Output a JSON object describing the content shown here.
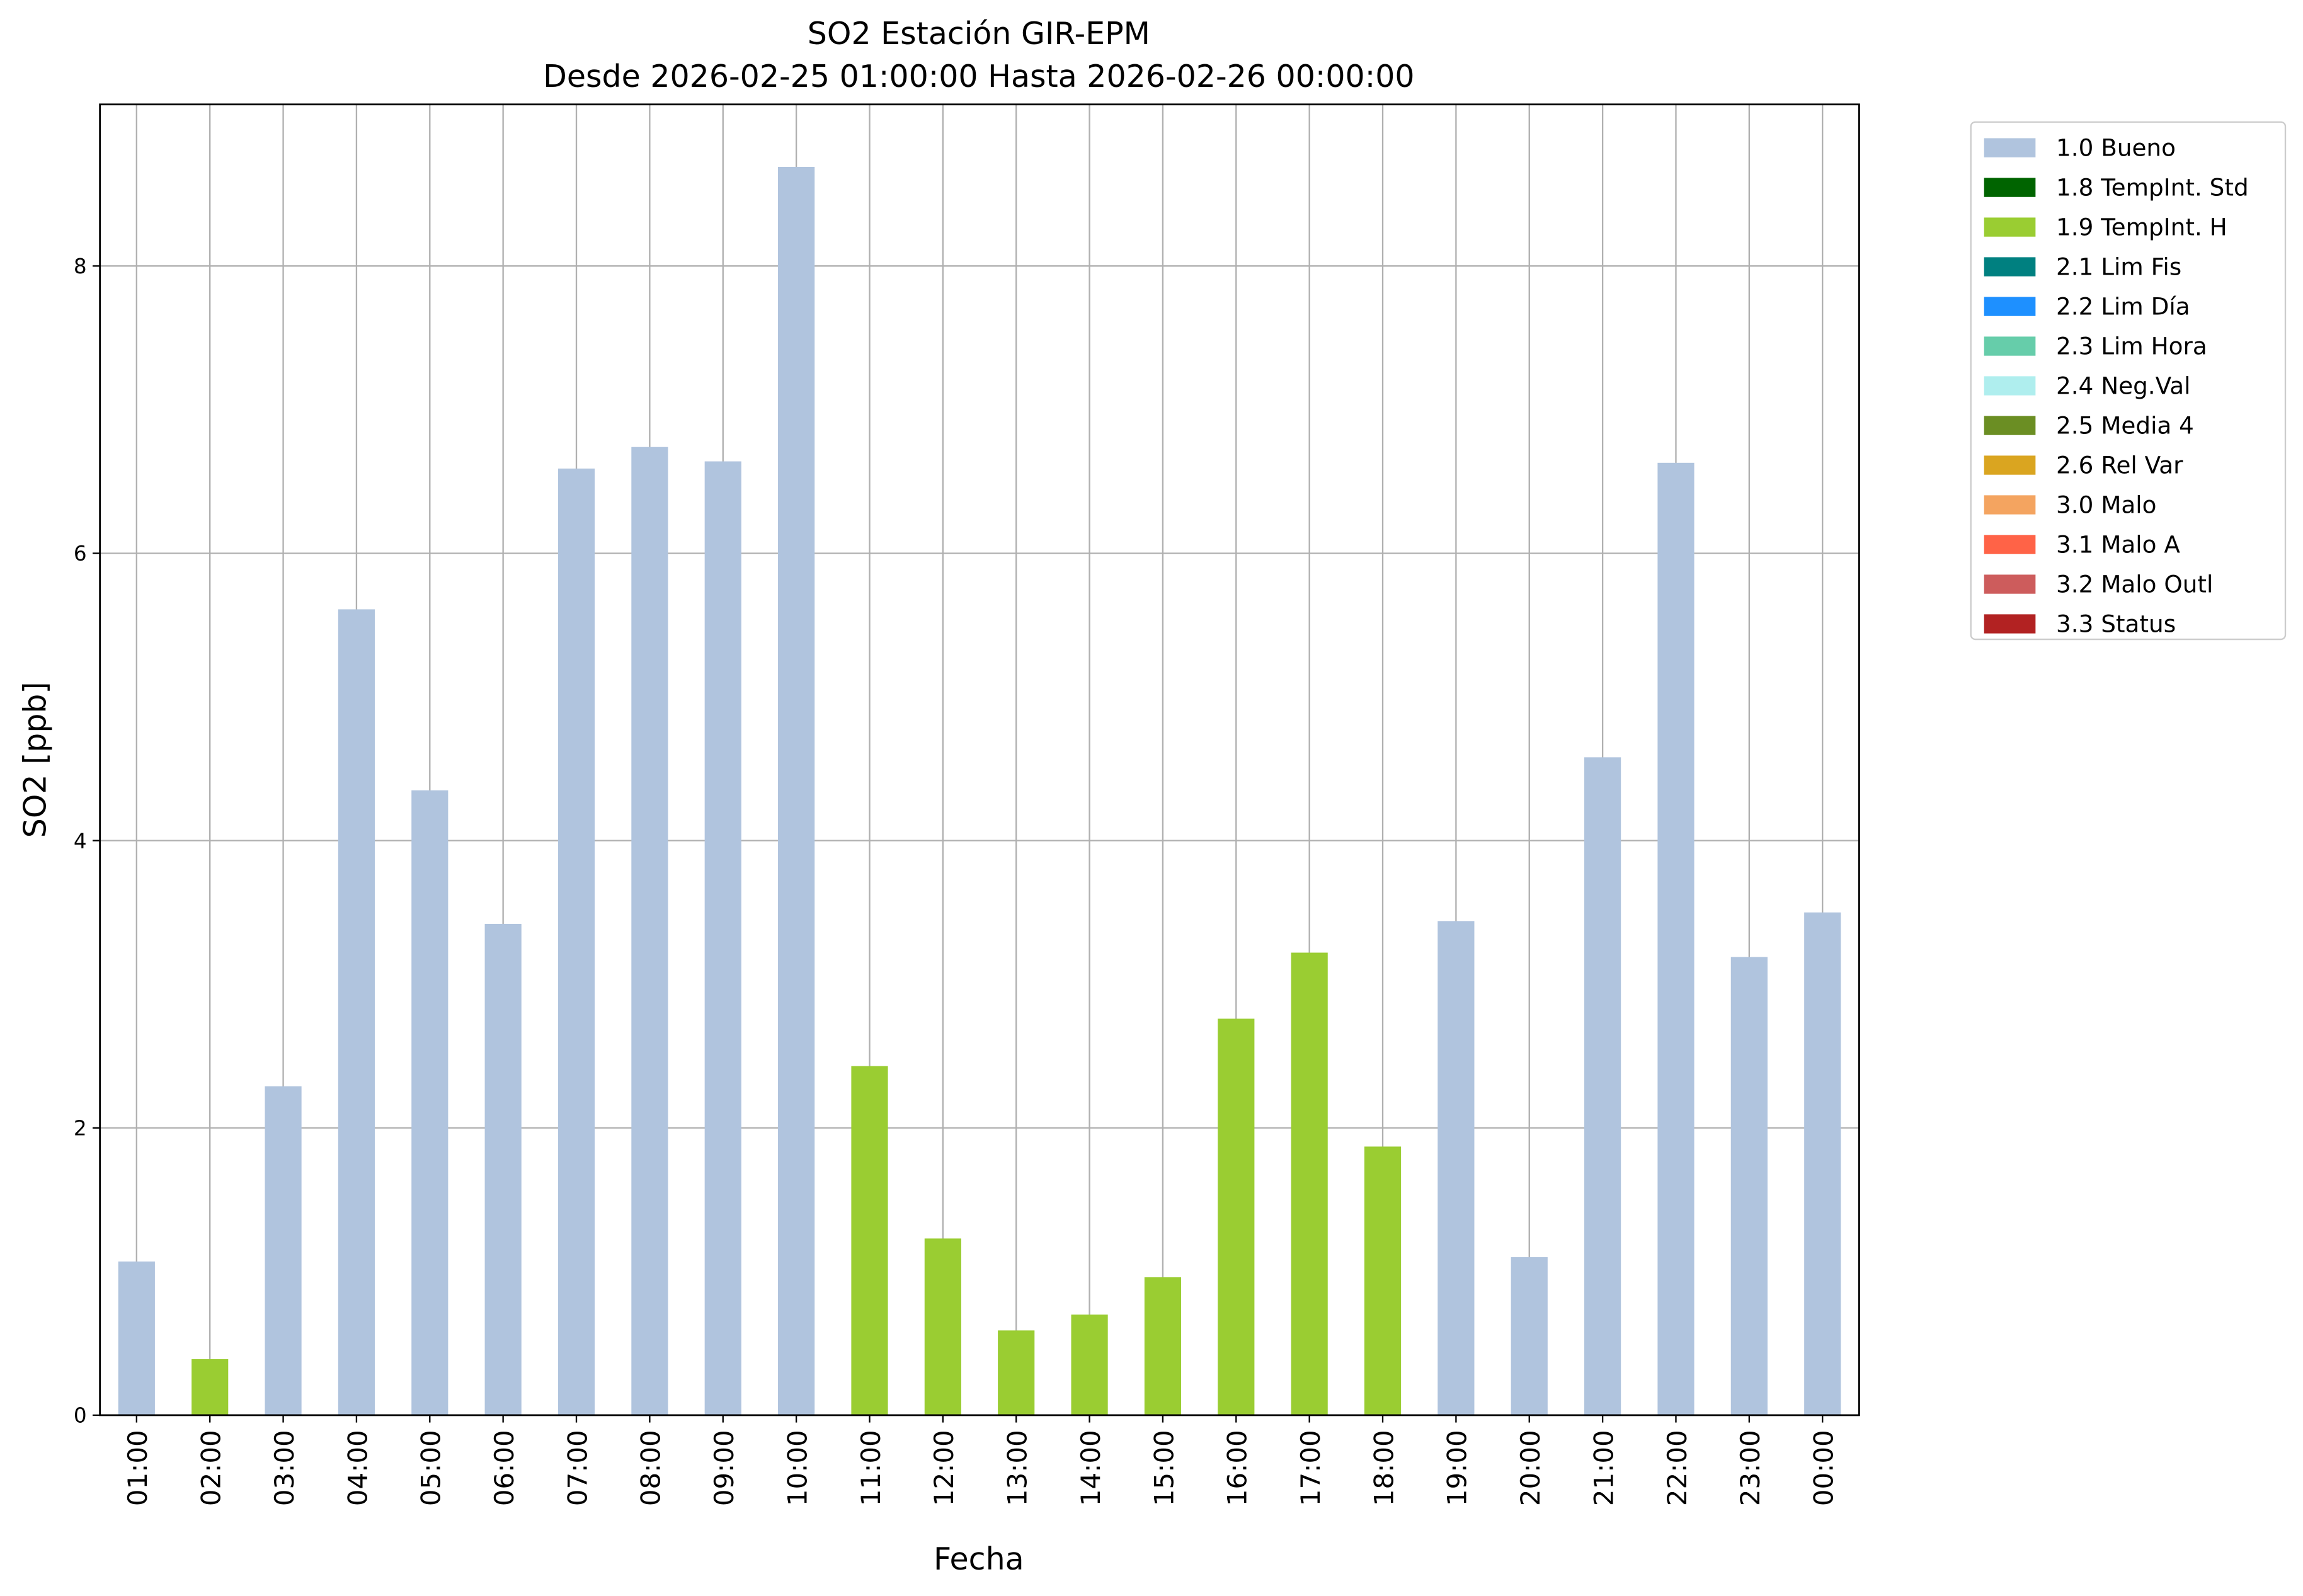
{
  "chart_data": {
    "type": "stacked_bar",
    "title": "SO2 Estación GIR-EPM",
    "subtitle": "Desde 2026-02-25 01:00:00 Hasta 2026-02-26 00:00:00",
    "x_label": "Fecha",
    "y_label": "SO2 [ppb]",
    "categories": [
      "01:00",
      "02:00",
      "03:00",
      "04:00",
      "05:00",
      "06:00",
      "07:00",
      "08:00",
      "09:00",
      "10:00",
      "11:00",
      "12:00",
      "13:00",
      "14:00",
      "15:00",
      "16:00",
      "17:00",
      "18:00",
      "19:00",
      "20:00",
      "21:00",
      "22:00",
      "23:00",
      "00:00"
    ],
    "ylim": [
      0,
      9.125
    ],
    "yticks": [
      0,
      2,
      4,
      6,
      8
    ],
    "grid": true,
    "legend": "outside-upper-right",
    "series": [
      {
        "name": "1.0 Bueno",
        "color": "#b0c4de",
        "values": [
          1.07,
          null,
          2.29,
          5.61,
          4.35,
          3.42,
          6.59,
          6.74,
          6.64,
          8.69,
          null,
          null,
          null,
          null,
          null,
          null,
          null,
          null,
          3.44,
          1.1,
          4.58,
          6.63,
          3.19,
          3.5
        ]
      },
      {
        "name": "1.8 TempInt. Std",
        "color": "#006400",
        "values": [
          null,
          null,
          null,
          null,
          null,
          null,
          null,
          null,
          null,
          null,
          null,
          null,
          null,
          null,
          null,
          null,
          null,
          null,
          null,
          null,
          null,
          null,
          null,
          null
        ]
      },
      {
        "name": "1.9 TempInt. H",
        "color": "#9acd32",
        "values": [
          null,
          0.39,
          null,
          null,
          null,
          null,
          null,
          null,
          null,
          null,
          2.43,
          1.23,
          0.59,
          0.7,
          0.96,
          2.76,
          3.22,
          1.87,
          null,
          null,
          null,
          null,
          null,
          null
        ]
      },
      {
        "name": "2.1 Lim Fis",
        "color": "#008080",
        "values": [
          null,
          null,
          null,
          null,
          null,
          null,
          null,
          null,
          null,
          null,
          null,
          null,
          null,
          null,
          null,
          null,
          null,
          null,
          null,
          null,
          null,
          null,
          null,
          null
        ]
      },
      {
        "name": "2.2 Lim Día",
        "color": "#1e90ff",
        "values": [
          null,
          null,
          null,
          null,
          null,
          null,
          null,
          null,
          null,
          null,
          null,
          null,
          null,
          null,
          null,
          null,
          null,
          null,
          null,
          null,
          null,
          null,
          null,
          null
        ]
      },
      {
        "name": "2.3 Lim Hora",
        "color": "#66cdaa",
        "values": [
          null,
          null,
          null,
          null,
          null,
          null,
          null,
          null,
          null,
          null,
          null,
          null,
          null,
          null,
          null,
          null,
          null,
          null,
          null,
          null,
          null,
          null,
          null,
          null
        ]
      },
      {
        "name": "2.4 Neg.Val",
        "color": "#afeeee",
        "values": [
          null,
          null,
          null,
          null,
          null,
          null,
          null,
          null,
          null,
          null,
          null,
          null,
          null,
          null,
          null,
          null,
          null,
          null,
          null,
          null,
          null,
          null,
          null,
          null
        ]
      },
      {
        "name": "2.5 Media 4",
        "color": "#6b8e23",
        "values": [
          null,
          null,
          null,
          null,
          null,
          null,
          null,
          null,
          null,
          null,
          null,
          null,
          null,
          null,
          null,
          null,
          null,
          null,
          null,
          null,
          null,
          null,
          null,
          null
        ]
      },
      {
        "name": "2.6 Rel Var",
        "color": "#daa520",
        "values": [
          null,
          null,
          null,
          null,
          null,
          null,
          null,
          null,
          null,
          null,
          null,
          null,
          null,
          null,
          null,
          null,
          null,
          null,
          null,
          null,
          null,
          null,
          null,
          null
        ]
      },
      {
        "name": "3.0 Malo",
        "color": "#f4a460",
        "values": [
          null,
          null,
          null,
          null,
          null,
          null,
          null,
          null,
          null,
          null,
          null,
          null,
          null,
          null,
          null,
          null,
          null,
          null,
          null,
          null,
          null,
          null,
          null,
          null
        ]
      },
      {
        "name": "3.1 Malo A",
        "color": "#ff6347",
        "values": [
          null,
          null,
          null,
          null,
          null,
          null,
          null,
          null,
          null,
          null,
          null,
          null,
          null,
          null,
          null,
          null,
          null,
          null,
          null,
          null,
          null,
          null,
          null,
          null
        ]
      },
      {
        "name": "3.2 Malo Outl",
        "color": "#cd5c5c",
        "values": [
          null,
          null,
          null,
          null,
          null,
          null,
          null,
          null,
          null,
          null,
          null,
          null,
          null,
          null,
          null,
          null,
          null,
          null,
          null,
          null,
          null,
          null,
          null,
          null
        ]
      },
      {
        "name": "3.3 Status",
        "color": "#b22222",
        "values": [
          null,
          null,
          null,
          null,
          null,
          null,
          null,
          null,
          null,
          null,
          null,
          null,
          null,
          null,
          null,
          null,
          null,
          null,
          null,
          null,
          null,
          null,
          null,
          null
        ]
      }
    ]
  }
}
